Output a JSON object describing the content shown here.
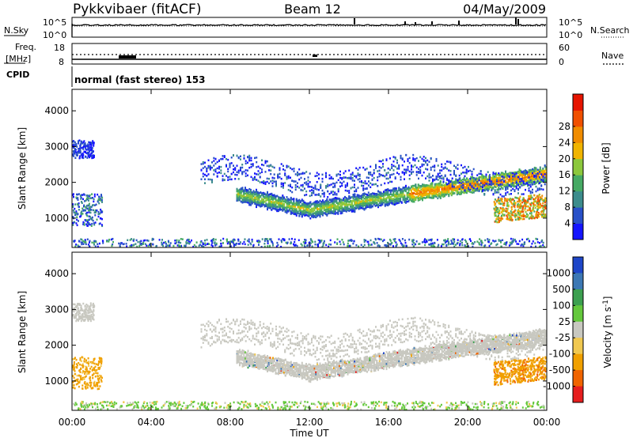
{
  "header": {
    "station": "Pykkvibaer (fitACF)",
    "beam": "Beam 12",
    "date": "04/May/2009"
  },
  "nsky_panel": {
    "left_label": "N.Sky",
    "right_label": "N.Search",
    "left_ticks": [
      "10^5",
      "10^0"
    ],
    "right_ticks": [
      "10^5",
      "10^0"
    ]
  },
  "freq_panel": {
    "left_label_top": "Freq.",
    "left_label_bottom": "[MHz]",
    "right_label": "Nave",
    "left_ticks": [
      "18",
      "8"
    ],
    "right_ticks": [
      "60",
      "0"
    ]
  },
  "cpid": {
    "label": "CPID",
    "value": "normal (fast stereo) 153"
  },
  "chart_data": [
    {
      "type": "heatmap",
      "quantity": "Power",
      "ylabel": "Slant Range [km]",
      "colorbar_label": "Power [dB]",
      "ylim": [
        180,
        4600
      ],
      "y_ticks": [
        1000,
        2000,
        3000,
        4000
      ],
      "colorbar_ticks": [
        4,
        8,
        12,
        16,
        20,
        24,
        28
      ],
      "colorbar_colors": [
        "#1414ff",
        "#2850c8",
        "#3c8c8c",
        "#46aa64",
        "#8cc83c",
        "#f0b400",
        "#f08c00",
        "#f05000",
        "#e61400"
      ]
    },
    {
      "type": "heatmap",
      "quantity": "Velocity",
      "ylabel": "Slant Range [km]",
      "colorbar_label": "Velocity [m s",
      "colorbar_exp": "-1",
      "colorbar_label_end": "]",
      "ylim": [
        180,
        4600
      ],
      "y_ticks": [
        1000,
        2000,
        3000,
        4000
      ],
      "colorbar_ticks": [
        1000,
        500,
        100,
        25,
        -25,
        -100,
        -500,
        -1000
      ],
      "colorbar_colors": [
        "#1e46c8",
        "#3c78b4",
        "#3ca050",
        "#64c83c",
        "#c8c8c0",
        "#f0c850",
        "#f0a000",
        "#f06400",
        "#e61e1e"
      ]
    }
  ],
  "x_axis": {
    "label": "Time UT",
    "ticks": [
      "00:00",
      "04:00",
      "08:00",
      "12:00",
      "16:00",
      "20:00",
      "00:00"
    ]
  }
}
